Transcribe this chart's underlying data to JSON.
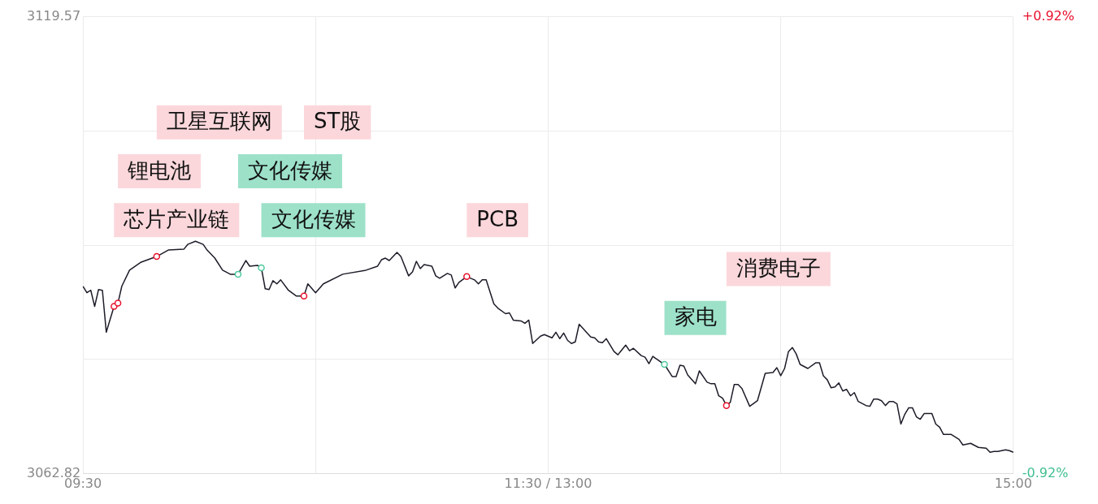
{
  "chart_data": {
    "type": "line",
    "categories": [
      "09:30",
      null,
      null,
      null,
      null,
      null,
      null,
      null,
      null,
      null,
      null,
      null,
      null,
      null,
      null,
      null,
      null,
      null,
      null,
      null,
      null,
      null,
      null,
      null,
      null,
      null,
      null,
      null,
      null,
      null,
      null,
      null,
      null,
      null,
      null,
      null,
      null,
      null,
      null,
      null,
      null,
      null,
      null,
      null,
      null,
      null,
      null,
      null,
      null,
      null,
      null,
      null,
      null,
      null,
      null,
      null,
      null,
      null,
      null,
      null,
      null,
      null,
      null,
      null,
      null,
      null,
      null,
      null,
      null,
      null,
      null,
      null,
      null,
      null,
      null,
      null,
      null,
      null,
      null,
      null,
      null,
      null,
      null,
      null,
      null,
      null,
      null,
      null,
      null,
      null,
      null,
      null,
      null,
      null,
      null,
      null,
      null,
      null,
      null,
      null,
      null,
      null,
      null,
      null,
      null,
      null,
      null,
      null,
      null,
      null,
      null,
      null,
      null,
      null,
      null,
      null,
      null,
      null,
      null,
      null,
      "11:30 / 13:00",
      null,
      null,
      null,
      null,
      null,
      null,
      null,
      null,
      null,
      null,
      null,
      null,
      null,
      null,
      null,
      null,
      null,
      null,
      null,
      null,
      null,
      null,
      null,
      null,
      null,
      null,
      null,
      null,
      null,
      null,
      null,
      null,
      null,
      null,
      null,
      null,
      null,
      null,
      null,
      null,
      null,
      null,
      null,
      null,
      null,
      null,
      null,
      null,
      null,
      null,
      null,
      null,
      null,
      null,
      null,
      null,
      null,
      null,
      null,
      null,
      null,
      null,
      null,
      null,
      null,
      null,
      null,
      null,
      null,
      null,
      null,
      null,
      null,
      null,
      null,
      null,
      null,
      null,
      null,
      null,
      null,
      null,
      null,
      null,
      null,
      null,
      null,
      null,
      null,
      null,
      null,
      null,
      null,
      null,
      null,
      null,
      null,
      null,
      null,
      null,
      null,
      null,
      null,
      null,
      null,
      null,
      null,
      null,
      null,
      null,
      null,
      null,
      null,
      null,
      null,
      null,
      null,
      null,
      null,
      "15:00"
    ],
    "series": [
      {
        "color": "#1c1c28",
        "marker": "none",
        "values": [
          3086.1,
          3085.3,
          3085.6,
          3083.6,
          3085.7,
          3085.6,
          3080.4,
          null,
          3083.6,
          3084.0,
          3086.1,
          null,
          3088.1,
          null,
          null,
          3089.1,
          null,
          null,
          null,
          3089.8,
          null,
          null,
          3090.6,
          null,
          null,
          null,
          3090.7,
          3091.3,
          null,
          3091.7,
          null,
          3091.3,
          3090.6,
          null,
          3089.6,
          null,
          3088.1,
          null,
          3087.6,
          null,
          3087.6,
          null,
          3089.3,
          3088.6,
          null,
          3088.7,
          3088.4,
          3085.8,
          3085.7,
          3086.8,
          3086.4,
          3086.9,
          null,
          3085.6,
          null,
          3084.9,
          null,
          3084.9,
          3086.4,
          null,
          3085.3,
          null,
          3086.4,
          null,
          null,
          null,
          null,
          3087.6,
          null,
          null,
          null,
          null,
          null,
          3088.1,
          null,
          null,
          3088.6,
          3089.4,
          3089.6,
          3089.3,
          null,
          3090.3,
          3089.8,
          null,
          3087.4,
          3087.9,
          3089.2,
          3088.3,
          3088.8,
          null,
          3088.6,
          3087.4,
          3087.1,
          null,
          3087.7,
          3087.5,
          3085.9,
          3086.6,
          null,
          3087.3,
          null,
          3086.9,
          3086.4,
          3086.9,
          3086.9,
          null,
          3083.9,
          3083.4,
          null,
          3082.7,
          3082.8,
          3081.9,
          null,
          3081.8,
          3081.5,
          3081.9,
          3079.0,
          null,
          3079.9,
          3080.1,
          null,
          3079.7,
          3080.4,
          3079.6,
          3080.3,
          3079.4,
          3079.0,
          3079.2,
          3081.4,
          null,
          null,
          3079.8,
          3079.7,
          3079.2,
          3079.1,
          3079.6,
          null,
          3078.0,
          3077.6,
          null,
          3078.8,
          3078.1,
          3078.4,
          null,
          3077.5,
          3077.3,
          3076.5,
          3077.4,
          null,
          null,
          3076.4,
          null,
          3074.9,
          3074.9,
          3076.3,
          3076.2,
          3075.1,
          null,
          3074.0,
          3075.6,
          null,
          3074.2,
          3074.0,
          3074.0,
          3072.5,
          3072.2,
          3071.3,
          3071.7,
          3073.9,
          3073.9,
          3073.4,
          null,
          3071.2,
          null,
          3071.9,
          null,
          3075.3,
          null,
          3075.4,
          3076.0,
          3075.0,
          3075.9,
          3078.0,
          3078.5,
          3077.7,
          3076.4,
          null,
          3075.9,
          null,
          3076.6,
          3076.6,
          3075.0,
          3074.5,
          3073.5,
          3073.6,
          3074.1,
          3073.1,
          3073.3,
          3072.5,
          3072.9,
          3071.8,
          null,
          3071.3,
          3071.2,
          3072.1,
          3072.1,
          3071.9,
          3071.3,
          3071.8,
          3071.8,
          3071.5,
          3069.0,
          3070.2,
          3071.0,
          3071.0,
          3069.9,
          3069.6,
          3070.3,
          3070.3,
          3070.3,
          3069.0,
          3068.6,
          3067.7,
          null,
          3067.7,
          null,
          3067.1,
          3066.4,
          null,
          3066.6,
          null,
          3066.1,
          null,
          3066.0,
          3065.5,
          3065.6,
          3065.6,
          null,
          3065.8,
          3065.7,
          3065.5
        ]
      },
      {
        "type": "scatter",
        "color": "#e8112d",
        "marker": "circle",
        "values": [
          null,
          null,
          null,
          null,
          null,
          null,
          null,
          null,
          3083.6,
          3084.0,
          null,
          null,
          null,
          null,
          null,
          null,
          null,
          null,
          null,
          3089.8,
          null,
          null,
          null,
          null,
          null,
          null,
          null,
          null,
          null,
          null,
          null,
          null,
          null,
          null,
          null,
          null,
          null,
          null,
          null,
          null,
          null,
          null,
          null,
          null,
          null,
          null,
          null,
          null,
          null,
          null,
          null,
          null,
          null,
          null,
          null,
          null,
          null,
          3084.9,
          null,
          null,
          null,
          null,
          null,
          null,
          null,
          null,
          null,
          null,
          null,
          null,
          null,
          null,
          null,
          null,
          null,
          null,
          null,
          null,
          null,
          null,
          null,
          null,
          null,
          null,
          null,
          null,
          null,
          null,
          null,
          null,
          null,
          null,
          null,
          null,
          null,
          null,
          null,
          null,
          null,
          3087.3,
          null,
          null,
          null,
          null,
          null,
          null,
          null,
          null,
          null,
          null,
          null,
          null,
          null,
          null,
          null,
          null,
          null,
          null,
          null,
          null,
          null,
          null,
          null,
          null,
          null,
          null,
          null,
          null,
          null,
          null,
          null,
          null,
          null,
          null,
          null,
          null,
          null,
          null,
          null,
          null,
          null,
          null,
          null,
          null,
          null,
          null,
          null,
          null,
          null,
          null,
          null,
          null,
          null,
          null,
          null,
          null,
          null,
          null,
          null,
          null,
          null,
          null,
          null,
          null,
          null,
          null,
          3071.3,
          null,
          null,
          null,
          null,
          null,
          null,
          null,
          null,
          null,
          null,
          null,
          null,
          null,
          null,
          null,
          null,
          null,
          null,
          null,
          null,
          null,
          null,
          null,
          null,
          null,
          null,
          null,
          null,
          null,
          null,
          null,
          null,
          null,
          null,
          null,
          null,
          null,
          null,
          null,
          null,
          null,
          null,
          null,
          null,
          null,
          null,
          null,
          null,
          null,
          null,
          null,
          null,
          null,
          null,
          null,
          null,
          null,
          null,
          null,
          null,
          null,
          null,
          null,
          null,
          null,
          null,
          null,
          null,
          null,
          null,
          null,
          null,
          null,
          null
        ]
      },
      {
        "type": "scatter",
        "color": "#4cc99c",
        "marker": "circle",
        "values": [
          null,
          null,
          null,
          null,
          null,
          null,
          null,
          null,
          null,
          null,
          null,
          null,
          null,
          null,
          null,
          null,
          null,
          null,
          null,
          null,
          null,
          null,
          null,
          null,
          null,
          null,
          null,
          null,
          null,
          null,
          null,
          null,
          null,
          null,
          null,
          null,
          null,
          null,
          null,
          null,
          3087.6,
          null,
          null,
          null,
          null,
          null,
          3088.4,
          null,
          null,
          null,
          null,
          null,
          null,
          null,
          null,
          null,
          null,
          null,
          null,
          null,
          null,
          null,
          null,
          null,
          null,
          null,
          null,
          null,
          null,
          null,
          null,
          null,
          null,
          null,
          null,
          null,
          null,
          null,
          null,
          null,
          null,
          null,
          null,
          null,
          null,
          null,
          null,
          null,
          null,
          null,
          null,
          null,
          null,
          null,
          null,
          null,
          null,
          null,
          null,
          null,
          null,
          null,
          null,
          null,
          null,
          null,
          null,
          null,
          null,
          null,
          null,
          null,
          null,
          null,
          null,
          null,
          null,
          null,
          null,
          null,
          null,
          null,
          null,
          null,
          null,
          null,
          null,
          null,
          null,
          null,
          null,
          null,
          null,
          null,
          null,
          null,
          null,
          null,
          null,
          null,
          null,
          null,
          null,
          null,
          null,
          null,
          null,
          null,
          null,
          null,
          3076.4,
          null,
          null,
          null,
          null,
          null,
          null,
          null,
          null,
          null,
          null,
          null,
          null,
          null,
          null,
          null,
          null,
          null,
          null,
          null,
          null,
          null,
          null,
          null,
          null,
          null,
          null,
          null,
          null,
          null,
          null,
          null,
          null,
          null,
          null,
          null,
          null,
          null,
          null,
          null,
          null,
          null,
          null,
          null,
          null,
          null,
          null,
          null,
          null,
          null,
          null,
          null,
          null,
          null,
          null,
          null,
          null,
          null,
          null,
          null,
          null,
          null,
          null,
          null,
          null,
          null,
          null,
          null,
          null,
          null,
          null,
          null,
          null,
          null,
          null,
          null,
          null,
          null,
          null,
          null,
          null,
          null,
          null,
          null,
          null,
          null,
          null,
          null,
          null,
          null,
          null
        ]
      }
    ],
    "ylim": [
      3062.82,
      3119.57
    ],
    "yticks": [
      3062.82,
      {
        "value": 3077.01,
        "label": null
      },
      {
        "value": 3091.2,
        "label": null
      },
      {
        "value": 3105.38,
        "label": null
      },
      3119.57
    ],
    "y2lim": [
      -0.92,
      0.92
    ],
    "y2ticks": [
      {
        "value": -0.92,
        "label": "-0.92%"
      },
      {
        "value": 0.92,
        "label": "+0.92%"
      }
    ],
    "grid": true,
    "annotations": [
      "芯片产业链",
      "锂电池",
      "卫星互联网",
      "文化传媒",
      "文化传媒",
      "ST股",
      "PCB",
      "家电",
      "消费电子"
    ]
  }
}
